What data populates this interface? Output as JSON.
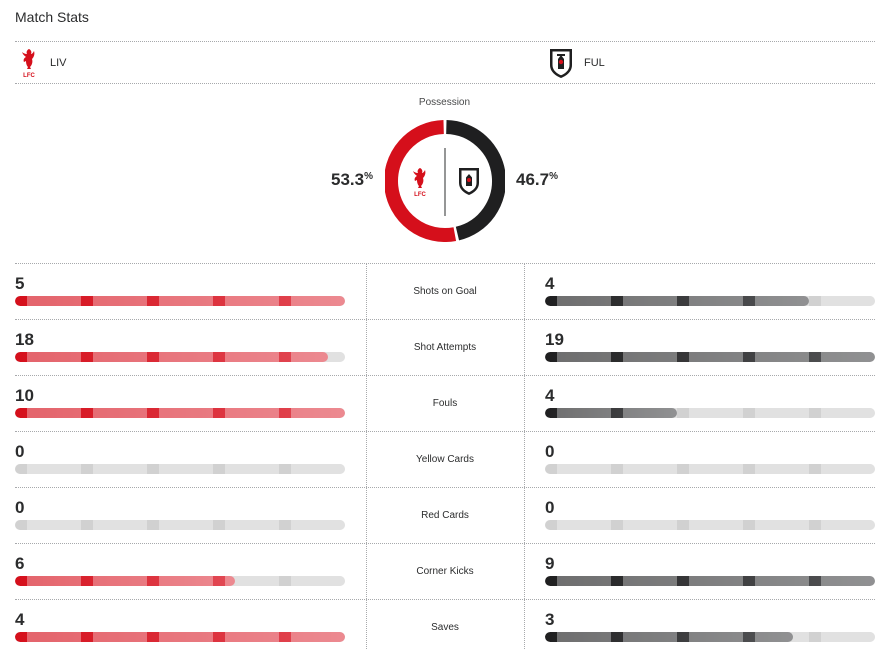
{
  "header": {
    "title": "Match Stats"
  },
  "teams": {
    "home": {
      "abbr": "LIV",
      "logo": "liverbird-crest-icon",
      "color": "#d50f1b"
    },
    "away": {
      "abbr": "FUL",
      "logo": "fulham-crest-icon",
      "color": "#1f1f20"
    }
  },
  "possession": {
    "label": "Possession",
    "home_value": "53.3",
    "away_value": "46.7",
    "unit": "%",
    "home_fraction": 0.533
  },
  "stats": [
    {
      "label": "Shots on Goal",
      "home": "5",
      "away": "4",
      "home_fill": 1.0,
      "away_fill": 0.8
    },
    {
      "label": "Shot Attempts",
      "home": "18",
      "away": "19",
      "home_fill": 0.947,
      "away_fill": 1.0
    },
    {
      "label": "Fouls",
      "home": "10",
      "away": "4",
      "home_fill": 1.0,
      "away_fill": 0.4
    },
    {
      "label": "Yellow Cards",
      "home": "0",
      "away": "0",
      "home_fill": 0,
      "away_fill": 0
    },
    {
      "label": "Red Cards",
      "home": "0",
      "away": "0",
      "home_fill": 0,
      "away_fill": 0
    },
    {
      "label": "Corner Kicks",
      "home": "6",
      "away": "9",
      "home_fill": 0.667,
      "away_fill": 1.0
    },
    {
      "label": "Saves",
      "home": "4",
      "away": "3",
      "home_fill": 1.0,
      "away_fill": 0.75
    }
  ]
}
